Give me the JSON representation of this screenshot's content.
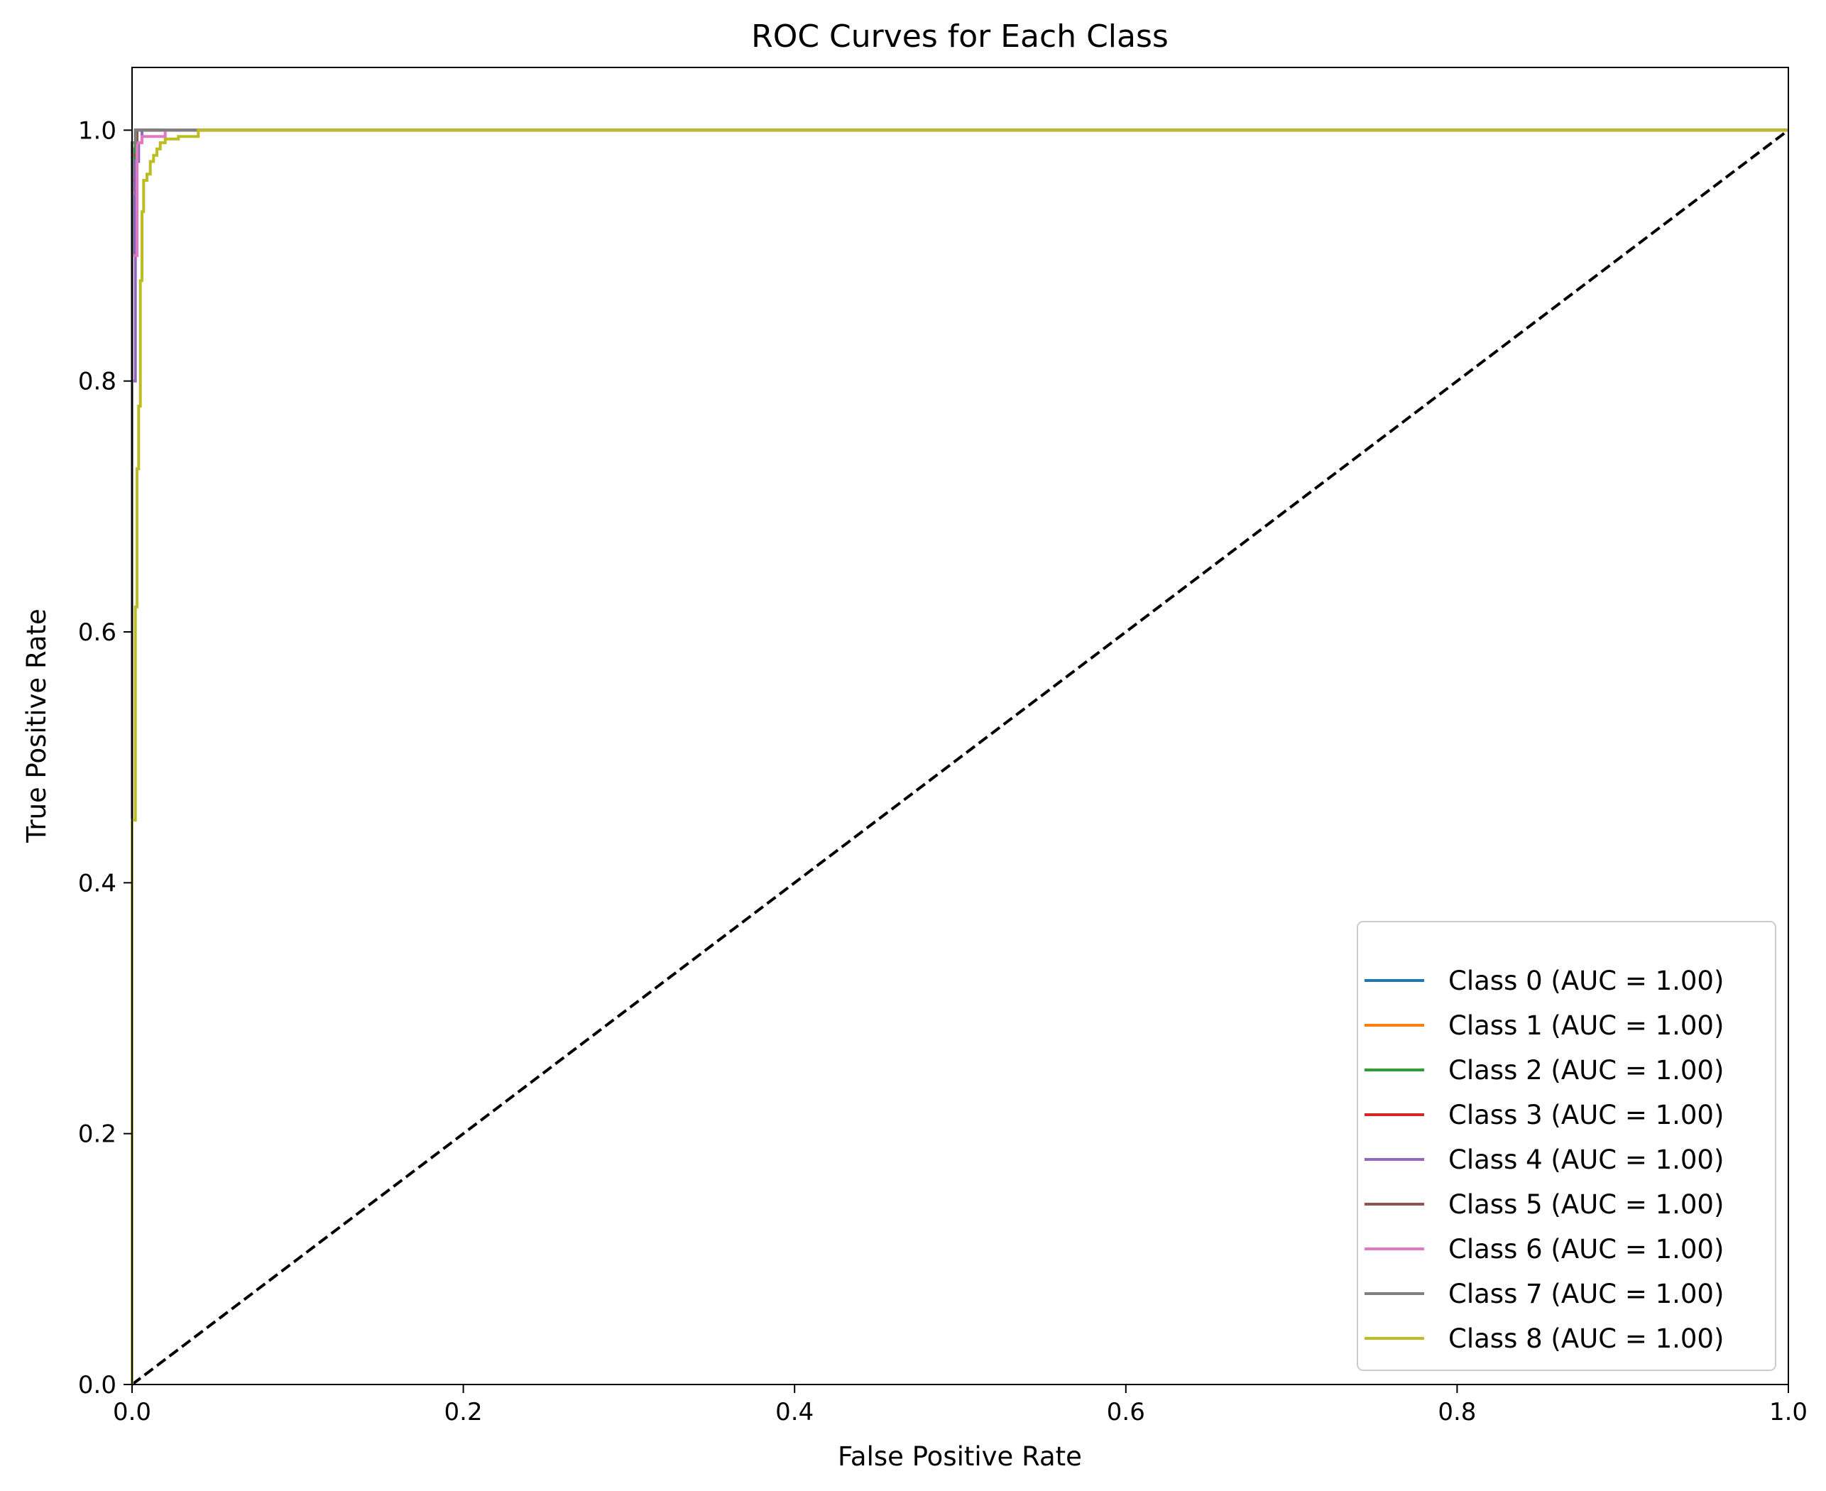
{
  "chart_data": {
    "type": "line",
    "title": "ROC Curves for Each Class",
    "xlabel": "False Positive Rate",
    "ylabel": "True Positive Rate",
    "xlim": [
      0.0,
      1.0
    ],
    "ylim": [
      0.0,
      1.05
    ],
    "x_ticks": [
      "0.0",
      "0.2",
      "0.4",
      "0.6",
      "0.8",
      "1.0"
    ],
    "y_ticks": [
      "0.0",
      "0.2",
      "0.4",
      "0.6",
      "0.8",
      "1.0"
    ],
    "grid": false,
    "legend_position": "bottom-right",
    "reference_line": {
      "x": [
        0.0,
        1.0
      ],
      "y": [
        0.0,
        1.0
      ],
      "color": "#000000",
      "style": "dashed"
    },
    "series": [
      {
        "name": "Class 0 (AUC = 1.00)",
        "color": "#1f77b4",
        "x": [
          0.0,
          0.0,
          0.001,
          0.001,
          0.003,
          0.003,
          1.0
        ],
        "y": [
          0.0,
          0.9,
          0.9,
          0.985,
          0.985,
          1.0,
          1.0
        ]
      },
      {
        "name": "Class 1 (AUC = 1.00)",
        "color": "#ff7f0e",
        "x": [
          0.0,
          0.0,
          0.002,
          0.002,
          1.0
        ],
        "y": [
          0.0,
          0.95,
          0.95,
          1.0,
          1.0
        ]
      },
      {
        "name": "Class 2 (AUC = 1.00)",
        "color": "#2ca02c",
        "x": [
          0.0,
          0.0,
          0.002,
          0.002,
          1.0
        ],
        "y": [
          0.0,
          0.97,
          0.97,
          1.0,
          1.0
        ]
      },
      {
        "name": "Class 3 (AUC = 1.00)",
        "color": "#d62728",
        "x": [
          0.0,
          0.0,
          0.003,
          0.003,
          1.0
        ],
        "y": [
          0.0,
          0.96,
          0.96,
          1.0,
          1.0
        ]
      },
      {
        "name": "Class 4 (AUC = 1.00)",
        "color": "#9467bd",
        "x": [
          0.0,
          0.0,
          0.002,
          0.002,
          0.004,
          0.004,
          0.006,
          0.006,
          1.0
        ],
        "y": [
          0.0,
          0.8,
          0.8,
          0.975,
          0.975,
          0.99,
          0.99,
          1.0,
          1.0
        ]
      },
      {
        "name": "Class 5 (AUC = 1.00)",
        "color": "#8c564b",
        "x": [
          0.0,
          0.0,
          0.003,
          0.003,
          1.0
        ],
        "y": [
          0.0,
          0.98,
          0.98,
          1.0,
          1.0
        ]
      },
      {
        "name": "Class 6 (AUC = 1.00)",
        "color": "#e377c2",
        "x": [
          0.0,
          0.0,
          0.003,
          0.003,
          0.006,
          0.006,
          0.02,
          0.02,
          1.0
        ],
        "y": [
          0.0,
          0.9,
          0.9,
          0.99,
          0.99,
          0.995,
          0.995,
          1.0,
          1.0
        ]
      },
      {
        "name": "Class 7 (AUC = 1.00)",
        "color": "#7f7f7f",
        "x": [
          0.0,
          0.0,
          0.002,
          0.002,
          0.04,
          0.04,
          1.0
        ],
        "y": [
          0.0,
          0.99,
          0.99,
          1.0,
          1.0,
          1.0,
          1.0
        ]
      },
      {
        "name": "Class 8 (AUC = 1.00)",
        "color": "#bcbd22",
        "x": [
          0.0,
          0.0,
          0.002,
          0.002,
          0.003,
          0.003,
          0.004,
          0.004,
          0.005,
          0.005,
          0.006,
          0.006,
          0.007,
          0.007,
          0.009,
          0.009,
          0.011,
          0.011,
          0.013,
          0.013,
          0.015,
          0.015,
          0.017,
          0.017,
          0.02,
          0.02,
          0.028,
          0.028,
          0.04,
          0.04,
          1.0
        ],
        "y": [
          0.0,
          0.45,
          0.45,
          0.62,
          0.62,
          0.73,
          0.73,
          0.78,
          0.78,
          0.88,
          0.88,
          0.935,
          0.935,
          0.96,
          0.96,
          0.965,
          0.965,
          0.975,
          0.975,
          0.98,
          0.98,
          0.985,
          0.985,
          0.99,
          0.99,
          0.993,
          0.993,
          0.995,
          0.995,
          1.0,
          1.0
        ]
      }
    ]
  }
}
